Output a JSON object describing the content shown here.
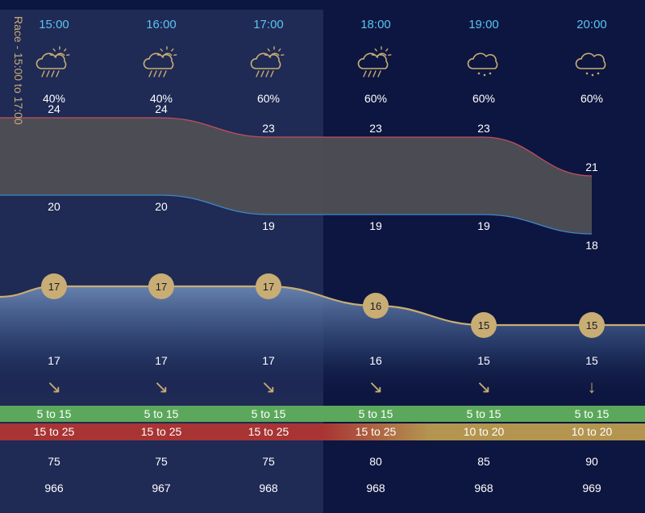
{
  "race_label": "Race - 15:00 to 17:00",
  "colors": {
    "background": "#0d1640",
    "race_shade": "#1f2a55",
    "hour_text": "#5bc4f0",
    "text": "#ffffff",
    "icon": "#c8ad74",
    "temp_high_line": "#c0505a",
    "temp_low_line": "#3f86c8",
    "temp_band": "#505055",
    "wind_line": "#c8ad74",
    "wind_bubble": "#c8ad74",
    "wind_band_green": "#5ba85c",
    "wind_band_red": "#a83434",
    "wind_band_gold": "#b39550"
  },
  "chart_data": {
    "type": "area",
    "race_window": [
      "15:00",
      "17:00"
    ],
    "hours": [
      "15:00",
      "16:00",
      "17:00",
      "18:00",
      "19:00",
      "20:00"
    ],
    "weather_icons": [
      "sun-cloud-rain-icon",
      "sun-cloud-rain-icon",
      "sun-cloud-rain-icon",
      "sun-cloud-rain-icon",
      "cloud-drizzle-icon",
      "cloud-drizzle-icon"
    ],
    "precip_chance": [
      "40%",
      "40%",
      "60%",
      "60%",
      "60%",
      "60%"
    ],
    "temp_high": [
      24,
      24,
      23,
      23,
      23,
      21
    ],
    "temp_low": [
      20,
      20,
      19,
      19,
      19,
      18
    ],
    "wind_speed": [
      17,
      17,
      17,
      16,
      15,
      15
    ],
    "wind_speed_labels": [
      "17",
      "17",
      "17",
      "16",
      "15",
      "15"
    ],
    "wind_direction_glyphs": [
      "↘",
      "↘",
      "↘",
      "↘",
      "↘",
      "↓"
    ],
    "band_green": [
      "5 to 15",
      "5 to 15",
      "5 to 15",
      "5 to 15",
      "5 to 15",
      "5 to 15"
    ],
    "band_second": [
      "15 to 25",
      "15 to 25",
      "15 to 25",
      "15 to 25",
      "10 to 20",
      "10 to 20"
    ],
    "band_second_colors": [
      "red",
      "red",
      "red",
      "red",
      "gold",
      "gold"
    ],
    "humidity": [
      "75",
      "75",
      "75",
      "80",
      "85",
      "90"
    ],
    "pressure": [
      "966",
      "967",
      "968",
      "968",
      "968",
      "969"
    ]
  }
}
